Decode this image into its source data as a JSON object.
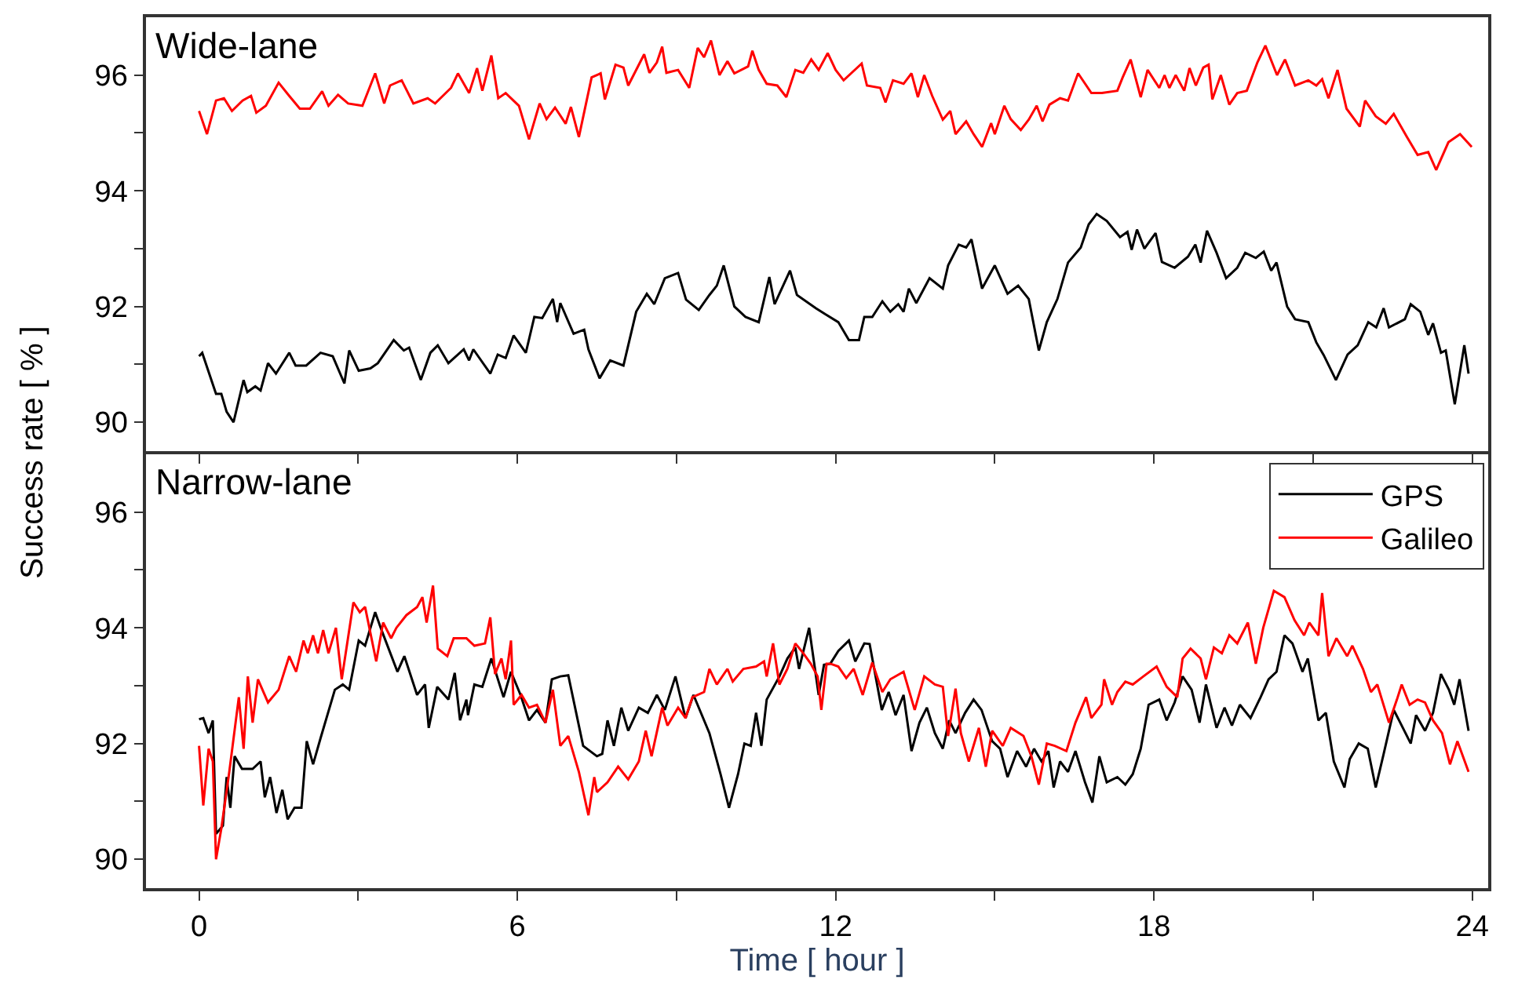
{
  "chart_data": [
    {
      "type": "line",
      "title": "Wide-lane",
      "ylabel": "Success rate [ % ]",
      "xlim": [
        -1,
        24.3
      ],
      "ylim": [
        89.5,
        97
      ],
      "xticks": [
        0,
        {
          "value": 3,
          "label": null
        },
        6,
        {
          "value": 9,
          "label": null
        },
        12,
        {
          "value": 15,
          "label": null
        },
        18,
        {
          "value": 21,
          "label": null
        },
        24
      ],
      "yticks": [
        90,
        {
          "value": 91,
          "label": null
        },
        92,
        {
          "value": 93,
          "label": null
        },
        94,
        {
          "value": 95,
          "label": null
        },
        96
      ],
      "tick_labels": "y",
      "grid": false,
      "legend": false,
      "marker": "none",
      "line_style": "solid",
      "series": [
        {
          "color": "#000000",
          "x": [
            0,
            0.06,
            0.32,
            0.42,
            0.52,
            0.65,
            0.84,
            0.91,
            1.06,
            1.16,
            1.3,
            1.45,
            1.7,
            1.82,
            2.02,
            2.29,
            2.52,
            2.74,
            2.83,
            3.01,
            3.23,
            3.37,
            3.67,
            3.86,
            3.96,
            4.18,
            4.36,
            4.5,
            4.7,
            4.99,
            5.09,
            5.17,
            5.49,
            5.63,
            5.78,
            5.93,
            6.16,
            6.32,
            6.47,
            6.67,
            6.75,
            6.81,
            7.06,
            7.26,
            7.34,
            7.55,
            7.75,
            8.0,
            8.24,
            8.44,
            8.58,
            8.78,
            9.03,
            9.18,
            9.42,
            9.62,
            9.76,
            9.89,
            10.09,
            10.3,
            10.55,
            10.75,
            10.85,
            11.14,
            11.27,
            11.63,
            11.8,
            12.05,
            12.25,
            12.44,
            12.54,
            12.69,
            12.88,
            13.03,
            13.18,
            13.28,
            13.38,
            13.52,
            13.77,
            14.02,
            14.12,
            14.32,
            14.46,
            14.56,
            14.76,
            15.0,
            15.24,
            15.44,
            15.64,
            15.83,
            15.98,
            16.18,
            16.38,
            16.62,
            16.77,
            16.92,
            17.11,
            17.36,
            17.5,
            17.58,
            17.68,
            17.82,
            18.03,
            18.15,
            18.39,
            18.64,
            18.78,
            18.88,
            19.0,
            19.18,
            19.36,
            19.57,
            19.72,
            19.92,
            20.07,
            20.21,
            20.31,
            20.51,
            20.66,
            20.91,
            21.06,
            21.2,
            21.43,
            21.65,
            21.84,
            22.04,
            22.19,
            22.33,
            22.43,
            22.73,
            22.84,
            23.02,
            23.17,
            23.26,
            23.41,
            23.5,
            23.67,
            23.85,
            23.93
          ],
          "values": [
            91.14,
            91.2,
            90.49,
            90.49,
            90.18,
            90.0,
            90.73,
            90.52,
            90.62,
            90.55,
            91.02,
            90.84,
            91.2,
            90.98,
            90.98,
            91.2,
            91.14,
            90.67,
            91.24,
            90.89,
            90.93,
            91.02,
            91.42,
            91.24,
            91.29,
            90.73,
            91.2,
            91.33,
            91.02,
            91.26,
            91.07,
            91.26,
            90.84,
            91.17,
            91.11,
            91.5,
            91.2,
            91.82,
            91.8,
            92.13,
            91.73,
            92.06,
            91.53,
            91.6,
            91.26,
            90.76,
            91.07,
            90.98,
            91.91,
            92.22,
            92.04,
            92.49,
            92.58,
            92.12,
            91.94,
            92.2,
            92.36,
            92.71,
            92.0,
            91.82,
            91.73,
            92.51,
            92.04,
            92.62,
            92.2,
            91.97,
            91.87,
            91.73,
            91.42,
            91.42,
            91.82,
            91.82,
            92.09,
            91.91,
            92.04,
            91.91,
            92.31,
            92.06,
            92.49,
            92.31,
            92.71,
            93.07,
            93.02,
            93.16,
            92.31,
            92.71,
            92.22,
            92.36,
            92.13,
            91.24,
            91.73,
            92.13,
            92.76,
            93.02,
            93.42,
            93.6,
            93.48,
            93.2,
            93.29,
            92.98,
            93.33,
            93.0,
            93.27,
            92.77,
            92.67,
            92.86,
            93.07,
            92.76,
            93.31,
            92.93,
            92.49,
            92.67,
            92.93,
            92.84,
            92.95,
            92.62,
            92.76,
            92.0,
            91.78,
            91.73,
            91.38,
            91.16,
            90.73,
            91.17,
            91.33,
            91.73,
            91.64,
            91.97,
            91.64,
            91.78,
            92.04,
            91.91,
            91.51,
            91.71,
            91.2,
            91.24,
            90.31,
            91.33,
            90.84
          ]
        },
        {
          "color": "#ff0000",
          "x": [
            0,
            0.15,
            0.32,
            0.47,
            0.62,
            0.82,
            0.98,
            1.08,
            1.26,
            1.5,
            1.7,
            1.9,
            2.09,
            2.32,
            2.44,
            2.62,
            2.81,
            3.08,
            3.32,
            3.49,
            3.6,
            3.82,
            4.04,
            4.31,
            4.45,
            4.75,
            4.88,
            5.09,
            5.24,
            5.34,
            5.51,
            5.64,
            5.78,
            6.03,
            6.22,
            6.42,
            6.55,
            6.71,
            6.91,
            7.01,
            7.16,
            7.4,
            7.57,
            7.65,
            7.85,
            8.0,
            8.09,
            8.39,
            8.49,
            8.63,
            8.73,
            8.81,
            9.03,
            9.24,
            9.4,
            9.52,
            9.65,
            9.81,
            9.96,
            10.09,
            10.35,
            10.43,
            10.55,
            10.7,
            10.9,
            11.07,
            11.24,
            11.39,
            11.54,
            11.68,
            11.85,
            12.0,
            12.15,
            12.49,
            12.59,
            12.84,
            12.94,
            13.08,
            13.28,
            13.43,
            13.55,
            13.67,
            13.82,
            14.02,
            14.16,
            14.26,
            14.46,
            14.6,
            14.76,
            14.93,
            15.0,
            15.18,
            15.3,
            15.49,
            15.64,
            15.79,
            15.9,
            16.03,
            16.23,
            16.38,
            16.57,
            16.82,
            17.02,
            17.31,
            17.41,
            17.56,
            17.75,
            17.88,
            18.1,
            18.2,
            18.29,
            18.41,
            18.57,
            18.67,
            18.79,
            18.93,
            19.03,
            19.1,
            19.26,
            19.42,
            19.57,
            19.75,
            19.95,
            20.1,
            20.32,
            20.47,
            20.66,
            20.91,
            21.06,
            21.17,
            21.29,
            21.46,
            21.63,
            21.88,
            21.98,
            22.18,
            22.37,
            22.52,
            22.77,
            22.97,
            23.17,
            23.32,
            23.55,
            23.77,
            23.99
          ],
          "values": [
            95.38,
            94.98,
            95.56,
            95.6,
            95.38,
            95.56,
            95.64,
            95.35,
            95.47,
            95.87,
            95.64,
            95.42,
            95.42,
            95.72,
            95.47,
            95.66,
            95.51,
            95.47,
            96.03,
            95.51,
            95.82,
            95.91,
            95.51,
            95.6,
            95.51,
            95.78,
            96.03,
            95.69,
            96.12,
            95.73,
            96.34,
            95.6,
            95.69,
            95.47,
            94.89,
            95.51,
            95.24,
            95.44,
            95.16,
            95.45,
            94.93,
            95.96,
            96.03,
            95.58,
            96.18,
            96.13,
            95.82,
            96.36,
            96.04,
            96.22,
            96.49,
            96.04,
            96.09,
            95.78,
            96.47,
            96.31,
            96.6,
            96.0,
            96.24,
            96.03,
            96.15,
            96.42,
            96.09,
            95.85,
            95.82,
            95.62,
            96.09,
            96.04,
            96.27,
            96.09,
            96.38,
            96.09,
            95.91,
            96.2,
            95.82,
            95.78,
            95.53,
            95.91,
            95.85,
            96.03,
            95.62,
            96.0,
            95.64,
            95.23,
            95.38,
            94.98,
            95.2,
            94.98,
            94.76,
            95.17,
            94.98,
            95.47,
            95.24,
            95.05,
            95.23,
            95.47,
            95.2,
            95.49,
            95.6,
            95.56,
            96.03,
            95.69,
            95.69,
            95.73,
            95.96,
            96.27,
            95.62,
            96.09,
            95.78,
            96.0,
            95.78,
            96.0,
            95.73,
            96.12,
            95.82,
            96.13,
            96.18,
            95.58,
            96.0,
            95.49,
            95.69,
            95.73,
            96.22,
            96.51,
            96.0,
            96.27,
            95.82,
            95.91,
            95.82,
            95.93,
            95.6,
            96.09,
            95.42,
            95.11,
            95.56,
            95.29,
            95.16,
            95.33,
            94.93,
            94.62,
            94.67,
            94.36,
            94.84,
            94.98,
            94.76
          ]
        }
      ]
    },
    {
      "type": "line",
      "title": "Narrow-lane",
      "xlabel": "Time [ hour ]",
      "xlim": [
        -1,
        24.3
      ],
      "ylim": [
        89.5,
        97
      ],
      "xticks": [
        0,
        {
          "value": 3,
          "label": null
        },
        6,
        {
          "value": 9,
          "label": null
        },
        12,
        {
          "value": 15,
          "label": null
        },
        18,
        {
          "value": 21,
          "label": null
        },
        24
      ],
      "yticks": [
        90,
        {
          "value": 91,
          "label": null
        },
        92,
        {
          "value": 93,
          "label": null
        },
        94,
        {
          "value": 95,
          "label": null
        },
        96
      ],
      "grid": false,
      "legend": "top right",
      "marker": "none",
      "line_style": "solid",
      "series": [
        {
          "name": "GPS",
          "color": "#000000",
          "x": [
            0,
            0.08,
            0.18,
            0.26,
            0.32,
            0.45,
            0.52,
            0.59,
            0.67,
            0.81,
            1.01,
            1.16,
            1.24,
            1.34,
            1.46,
            1.57,
            1.67,
            1.8,
            1.93,
            2.03,
            2.15,
            2.29,
            2.56,
            2.71,
            2.83,
            3.01,
            3.13,
            3.32,
            3.44,
            3.74,
            3.87,
            4.11,
            4.26,
            4.33,
            4.49,
            4.7,
            4.82,
            4.92,
            5.04,
            5.07,
            5.19,
            5.34,
            5.51,
            5.74,
            5.88,
            6.06,
            6.22,
            6.37,
            6.53,
            6.65,
            6.81,
            6.96,
            7.24,
            7.5,
            7.6,
            7.7,
            7.82,
            7.96,
            8.09,
            8.29,
            8.46,
            8.63,
            8.78,
            8.98,
            9.17,
            9.32,
            9.62,
            9.83,
            9.99,
            10.16,
            10.28,
            10.4,
            10.5,
            10.6,
            10.7,
            10.94,
            11.09,
            11.24,
            11.31,
            11.5,
            11.68,
            11.78,
            11.9,
            12.05,
            12.25,
            12.37,
            12.54,
            12.64,
            12.87,
            13.0,
            13.13,
            13.28,
            13.43,
            13.58,
            13.72,
            13.87,
            14.02,
            14.14,
            14.26,
            14.44,
            14.6,
            14.75,
            14.95,
            15.1,
            15.24,
            15.42,
            15.59,
            15.74,
            15.88,
            16.01,
            16.11,
            16.23,
            16.38,
            16.52,
            16.7,
            16.84,
            16.97,
            17.11,
            17.31,
            17.46,
            17.6,
            17.75,
            17.9,
            18.1,
            18.24,
            18.39,
            18.54,
            18.71,
            18.86,
            18.98,
            19.18,
            19.33,
            19.47,
            19.62,
            19.82,
            20.01,
            20.16,
            20.31,
            20.46,
            20.61,
            20.8,
            20.9,
            21.1,
            21.24,
            21.39,
            21.59,
            21.69,
            21.86,
            22.03,
            22.18,
            22.33,
            22.52,
            22.62,
            22.84,
            22.94,
            23.11,
            23.26,
            23.41,
            23.56,
            23.66,
            23.76,
            23.93
          ],
          "values": [
            92.42,
            92.44,
            92.18,
            92.4,
            90.44,
            90.58,
            91.42,
            90.89,
            91.78,
            91.56,
            91.56,
            91.69,
            91.07,
            91.42,
            90.8,
            91.2,
            90.69,
            90.89,
            90.89,
            92.04,
            91.64,
            92.09,
            92.93,
            93.02,
            92.93,
            93.78,
            93.69,
            94.27,
            93.96,
            93.24,
            93.51,
            92.84,
            93.02,
            92.27,
            92.98,
            92.76,
            93.22,
            92.4,
            92.76,
            92.49,
            93.02,
            92.98,
            93.47,
            92.8,
            93.24,
            92.84,
            92.4,
            92.58,
            92.36,
            93.11,
            93.16,
            93.18,
            91.96,
            91.78,
            91.82,
            92.4,
            91.96,
            92.62,
            92.22,
            92.62,
            92.53,
            92.84,
            92.58,
            93.16,
            92.44,
            92.84,
            92.18,
            91.47,
            90.89,
            91.47,
            92.0,
            91.96,
            92.53,
            91.96,
            92.76,
            93.16,
            93.47,
            93.66,
            93.29,
            94.0,
            92.84,
            93.36,
            93.38,
            93.6,
            93.78,
            93.42,
            93.73,
            93.72,
            92.58,
            92.89,
            92.49,
            92.84,
            91.87,
            92.36,
            92.62,
            92.18,
            91.91,
            92.4,
            92.18,
            92.53,
            92.76,
            92.58,
            92.04,
            91.91,
            91.42,
            91.87,
            91.6,
            91.91,
            91.69,
            91.87,
            91.24,
            91.69,
            91.51,
            91.87,
            91.33,
            90.98,
            91.78,
            91.33,
            91.42,
            91.29,
            91.47,
            91.91,
            92.67,
            92.76,
            92.4,
            92.71,
            93.16,
            92.93,
            92.36,
            93.02,
            92.27,
            92.62,
            92.31,
            92.67,
            92.44,
            92.8,
            93.11,
            93.24,
            93.87,
            93.73,
            93.24,
            93.47,
            92.4,
            92.53,
            91.69,
            91.24,
            91.73,
            92.0,
            91.91,
            91.24,
            91.82,
            92.58,
            92.4,
            92.0,
            92.49,
            92.22,
            92.53,
            93.2,
            92.93,
            92.67,
            93.11,
            92.22
          ]
        },
        {
          "name": "Galileo",
          "color": "#ff0000",
          "x": [
            0,
            0.08,
            0.18,
            0.26,
            0.32,
            0.42,
            0.57,
            0.75,
            0.84,
            0.92,
            1.01,
            1.11,
            1.3,
            1.5,
            1.7,
            1.83,
            1.97,
            2.05,
            2.15,
            2.24,
            2.34,
            2.44,
            2.58,
            2.69,
            2.91,
            3.03,
            3.13,
            3.34,
            3.47,
            3.62,
            3.72,
            3.91,
            4.11,
            4.21,
            4.29,
            4.41,
            4.5,
            4.68,
            4.8,
            5.04,
            5.19,
            5.39,
            5.49,
            5.58,
            5.7,
            5.78,
            5.88,
            5.93,
            6.08,
            6.22,
            6.37,
            6.53,
            6.67,
            6.81,
            6.96,
            7.16,
            7.34,
            7.45,
            7.5,
            7.7,
            7.9,
            8.09,
            8.29,
            8.42,
            8.53,
            8.73,
            8.83,
            9.03,
            9.17,
            9.3,
            9.52,
            9.62,
            9.76,
            9.96,
            10.06,
            10.26,
            10.5,
            10.65,
            10.7,
            10.82,
            10.94,
            11.09,
            11.24,
            11.39,
            11.53,
            11.66,
            11.73,
            11.83,
            11.9,
            12.05,
            12.2,
            12.34,
            12.51,
            12.69,
            12.88,
            13.03,
            13.28,
            13.49,
            13.67,
            13.87,
            14.02,
            14.12,
            14.26,
            14.36,
            14.51,
            14.7,
            14.83,
            14.95,
            15.15,
            15.3,
            15.54,
            15.69,
            15.83,
            15.98,
            16.13,
            16.35,
            16.52,
            16.72,
            16.82,
            17.01,
            17.06,
            17.21,
            17.31,
            17.46,
            17.6,
            17.8,
            18.05,
            18.24,
            18.44,
            18.54,
            18.69,
            18.88,
            18.98,
            19.13,
            19.28,
            19.42,
            19.57,
            19.77,
            19.92,
            20.06,
            20.26,
            20.46,
            20.65,
            20.83,
            20.93,
            21.1,
            21.17,
            21.29,
            21.44,
            21.64,
            21.74,
            21.94,
            22.09,
            22.21,
            22.43,
            22.58,
            22.67,
            22.82,
            22.97,
            23.11,
            23.26,
            23.43,
            23.58,
            23.72,
            23.93
          ],
          "values": [
            91.96,
            90.93,
            91.91,
            91.69,
            90.0,
            90.53,
            91.51,
            92.8,
            91.91,
            93.16,
            92.36,
            93.11,
            92.71,
            92.93,
            93.51,
            93.24,
            93.78,
            93.56,
            93.87,
            93.56,
            93.96,
            93.56,
            94.0,
            93.11,
            94.44,
            94.27,
            94.36,
            93.42,
            94.09,
            93.82,
            94.0,
            94.22,
            94.36,
            94.53,
            94.09,
            94.73,
            93.64,
            93.51,
            93.82,
            93.82,
            93.69,
            93.73,
            94.18,
            93.2,
            93.47,
            93.11,
            93.78,
            92.67,
            92.84,
            92.62,
            92.67,
            92.36,
            92.93,
            91.96,
            92.13,
            91.51,
            90.76,
            91.42,
            91.16,
            91.33,
            91.6,
            91.38,
            91.69,
            92.22,
            91.78,
            92.62,
            92.31,
            92.62,
            92.44,
            92.8,
            92.89,
            93.29,
            93.02,
            93.29,
            93.07,
            93.29,
            93.33,
            93.42,
            93.16,
            93.73,
            93.02,
            93.29,
            93.73,
            93.56,
            93.38,
            93.16,
            92.58,
            93.38,
            93.38,
            93.33,
            93.13,
            93.29,
            92.84,
            93.4,
            92.89,
            93.11,
            93.24,
            92.58,
            93.16,
            93.02,
            92.98,
            92.13,
            92.95,
            92.18,
            91.69,
            92.27,
            91.6,
            92.22,
            91.96,
            92.27,
            92.13,
            91.78,
            91.29,
            92.0,
            91.96,
            91.87,
            92.36,
            92.8,
            92.44,
            92.67,
            93.11,
            92.67,
            92.89,
            93.07,
            93.02,
            93.16,
            93.33,
            92.98,
            92.8,
            93.47,
            93.64,
            93.47,
            93.11,
            93.66,
            93.56,
            93.87,
            93.73,
            94.09,
            93.38,
            94.0,
            94.64,
            94.53,
            94.13,
            93.87,
            94.09,
            93.87,
            94.6,
            93.51,
            93.82,
            93.51,
            93.69,
            93.29,
            92.89,
            93.02,
            92.36,
            92.76,
            93.02,
            92.67,
            92.76,
            92.71,
            92.4,
            92.18,
            91.64,
            92.04,
            91.51
          ]
        }
      ]
    }
  ]
}
